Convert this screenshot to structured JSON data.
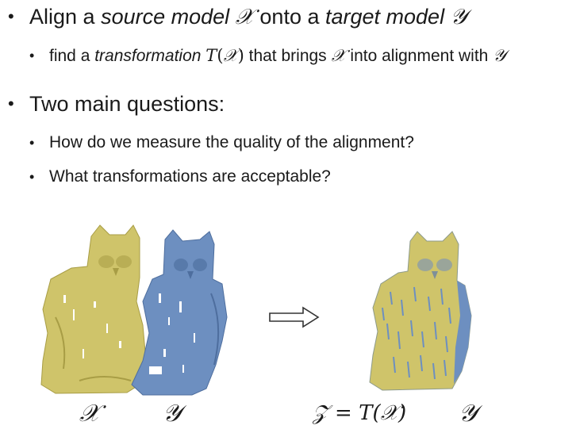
{
  "slide": {
    "bullet1": {
      "t1": "Align a ",
      "t2": "source model",
      "t3": " ",
      "x": "𝒳",
      "t4": " onto a ",
      "t5": "target model",
      "t6": " ",
      "y": "𝒴"
    },
    "sub1": {
      "t1": "find a ",
      "t2": "transformation",
      "t3": " ",
      "T": "T",
      "lp": "(",
      "x1": "𝒳",
      "rp": ")",
      "t4": " that brings ",
      "x2": "𝒳",
      "t5": " into alignment with ",
      "y": "𝒴"
    },
    "bullet2": "Two main questions:",
    "sub2": "How do we measure the quality of the alignment?",
    "sub3": "What transformations are acceptable?"
  },
  "figure": {
    "label_x": "𝒳",
    "label_y_left": "𝒴",
    "label_z_eq": "𝒵 = T(𝒳)",
    "label_y_right": "𝒴",
    "colors": {
      "source": "#cfc46a",
      "target": "#6d8fc0"
    },
    "arrow": "right-arrow"
  }
}
